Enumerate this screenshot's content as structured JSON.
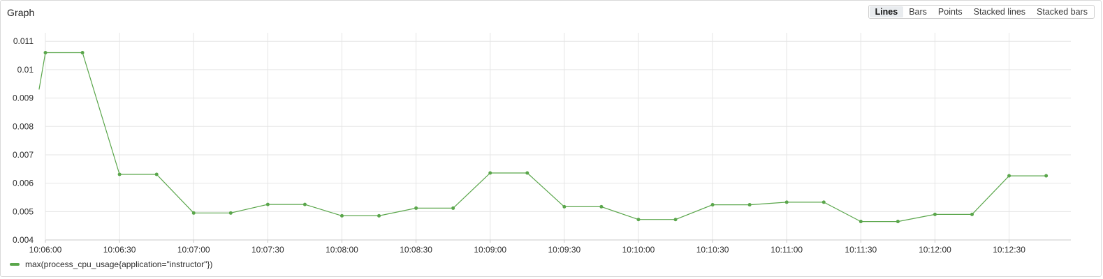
{
  "panel": {
    "title": "Graph"
  },
  "toolbar": {
    "options": [
      "Lines",
      "Bars",
      "Points",
      "Stacked lines",
      "Stacked bars"
    ],
    "selected": "Lines"
  },
  "colors": {
    "series": "#5aa64b",
    "grid": "#e5e5e5",
    "axis": "#c9c9c9"
  },
  "chart_data": {
    "type": "line",
    "title": "",
    "xlabel": "",
    "ylabel": "",
    "ylim": [
      0.004,
      0.0113
    ],
    "xlim": [
      "10:06:00",
      "10:12:55"
    ],
    "grid": true,
    "legend_position": "bottom-left",
    "y_ticks": [
      "0.004",
      "0.005",
      "0.006",
      "0.007",
      "0.008",
      "0.009",
      "0.01",
      "0.011"
    ],
    "x_ticks": [
      "10:06:00",
      "10:06:30",
      "10:07:00",
      "10:07:30",
      "10:08:00",
      "10:08:30",
      "10:09:00",
      "10:09:30",
      "10:10:00",
      "10:10:30",
      "10:11:00",
      "10:11:30",
      "10:12:00",
      "10:12:30"
    ],
    "series": [
      {
        "name": "max(process_cpu_usage{application=\"instructor\"})",
        "line_start": {
          "x": "10:05:58",
          "y": 0.0093
        },
        "points": [
          {
            "x": "10:06:00",
            "y": 0.0106
          },
          {
            "x": "10:06:15",
            "y": 0.0106
          },
          {
            "x": "10:06:30",
            "y": 0.00631
          },
          {
            "x": "10:06:45",
            "y": 0.00631
          },
          {
            "x": "10:07:00",
            "y": 0.00495
          },
          {
            "x": "10:07:15",
            "y": 0.00495
          },
          {
            "x": "10:07:30",
            "y": 0.00525
          },
          {
            "x": "10:07:45",
            "y": 0.00525
          },
          {
            "x": "10:08:00",
            "y": 0.00485
          },
          {
            "x": "10:08:15",
            "y": 0.00485
          },
          {
            "x": "10:08:30",
            "y": 0.00512
          },
          {
            "x": "10:08:45",
            "y": 0.00512
          },
          {
            "x": "10:09:00",
            "y": 0.00636
          },
          {
            "x": "10:09:15",
            "y": 0.00636
          },
          {
            "x": "10:09:30",
            "y": 0.00517
          },
          {
            "x": "10:09:45",
            "y": 0.00517
          },
          {
            "x": "10:10:00",
            "y": 0.00472
          },
          {
            "x": "10:10:15",
            "y": 0.00472
          },
          {
            "x": "10:10:30",
            "y": 0.00524
          },
          {
            "x": "10:10:45",
            "y": 0.00524
          },
          {
            "x": "10:11:00",
            "y": 0.00533
          },
          {
            "x": "10:11:15",
            "y": 0.00533
          },
          {
            "x": "10:11:30",
            "y": 0.00465
          },
          {
            "x": "10:11:45",
            "y": 0.00465
          },
          {
            "x": "10:12:00",
            "y": 0.0049
          },
          {
            "x": "10:12:15",
            "y": 0.0049
          },
          {
            "x": "10:12:30",
            "y": 0.00626
          },
          {
            "x": "10:12:45",
            "y": 0.00626
          }
        ]
      }
    ]
  }
}
